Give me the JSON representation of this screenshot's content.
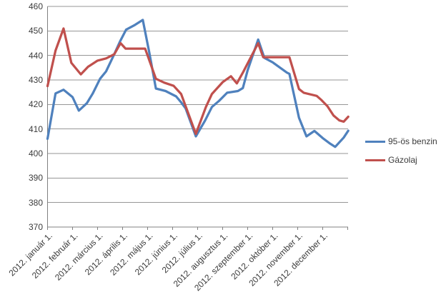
{
  "chart_data": {
    "type": "line",
    "title": "",
    "y_axis": {
      "min": 370,
      "max": 460,
      "step": 10,
      "ticks": [
        370,
        380,
        390,
        400,
        410,
        420,
        430,
        440,
        450,
        460
      ]
    },
    "x_axis": {
      "tick_labels": [
        "2012. január 1.",
        "2012. február 1.",
        "2012. március 1.",
        "2012. április 1.",
        "2012. május 1.",
        "2012. június 1.",
        "2012. július 1.",
        "2012. augusztus 1.",
        "2012. szeptember 1.",
        "2012. október 1.",
        "2012. november 1.",
        "2012. december 1."
      ],
      "months_shown": 12,
      "x_unit": "months since 2012. január 1."
    },
    "grid": "horizontal",
    "legend_position": "right",
    "series": [
      {
        "name": "95-ös benzin",
        "color": "#4F81BD",
        "points": [
          [
            0.0,
            406
          ],
          [
            0.32,
            424.5
          ],
          [
            0.64,
            426
          ],
          [
            1.0,
            423
          ],
          [
            1.25,
            417.5
          ],
          [
            1.57,
            420.5
          ],
          [
            1.81,
            424.5
          ],
          [
            2.1,
            430.5
          ],
          [
            2.34,
            433.5
          ],
          [
            2.62,
            439.5
          ],
          [
            2.91,
            446
          ],
          [
            3.14,
            450.5
          ],
          [
            3.5,
            452.5
          ],
          [
            3.81,
            454.5
          ],
          [
            4.07,
            441
          ],
          [
            4.33,
            426.5
          ],
          [
            4.72,
            425.5
          ],
          [
            5.14,
            423.3
          ],
          [
            5.33,
            421
          ],
          [
            5.52,
            418.4
          ],
          [
            5.93,
            407
          ],
          [
            6.3,
            413.5
          ],
          [
            6.57,
            419
          ],
          [
            6.86,
            421.5
          ],
          [
            7.18,
            424.8
          ],
          [
            7.61,
            425.5
          ],
          [
            7.81,
            426.7
          ],
          [
            8.0,
            434
          ],
          [
            8.42,
            446.5
          ],
          [
            8.67,
            439
          ],
          [
            9.0,
            437.2
          ],
          [
            9.57,
            433
          ],
          [
            9.67,
            432.5
          ],
          [
            10.05,
            414.6
          ],
          [
            10.35,
            407
          ],
          [
            10.67,
            409.2
          ],
          [
            11.0,
            406.3
          ],
          [
            11.3,
            404
          ],
          [
            11.5,
            402.7
          ],
          [
            11.84,
            406.5
          ],
          [
            12.02,
            409.3
          ]
        ]
      },
      {
        "name": "Gázolaj",
        "color": "#C0504D",
        "points": [
          [
            0.0,
            427.5
          ],
          [
            0.32,
            442
          ],
          [
            0.64,
            451
          ],
          [
            0.95,
            437
          ],
          [
            1.33,
            432.3
          ],
          [
            1.62,
            435.4
          ],
          [
            2.0,
            437.9
          ],
          [
            2.34,
            438.8
          ],
          [
            2.67,
            440.5
          ],
          [
            2.92,
            445
          ],
          [
            3.12,
            442.8
          ],
          [
            3.9,
            442.8
          ],
          [
            4.0,
            440
          ],
          [
            4.33,
            430.5
          ],
          [
            4.67,
            428.9
          ],
          [
            5.04,
            427.6
          ],
          [
            5.34,
            424.3
          ],
          [
            5.93,
            408
          ],
          [
            6.33,
            419
          ],
          [
            6.57,
            424.3
          ],
          [
            7.0,
            429.1
          ],
          [
            7.33,
            431.5
          ],
          [
            7.57,
            428.6
          ],
          [
            7.81,
            433
          ],
          [
            8.0,
            436.8
          ],
          [
            8.42,
            445
          ],
          [
            8.62,
            439.3
          ],
          [
            9.3,
            439.3
          ],
          [
            9.67,
            439.3
          ],
          [
            10.05,
            426.3
          ],
          [
            10.24,
            424.8
          ],
          [
            10.76,
            423.5
          ],
          [
            10.95,
            421.8
          ],
          [
            11.19,
            419.3
          ],
          [
            11.43,
            415.5
          ],
          [
            11.67,
            413.5
          ],
          [
            11.84,
            413
          ],
          [
            12.02,
            415
          ]
        ]
      }
    ],
    "colors": {
      "background": "#FFFFFF",
      "gridline": "#969696",
      "axis": "#808080",
      "text": "#3B3B3B"
    }
  }
}
